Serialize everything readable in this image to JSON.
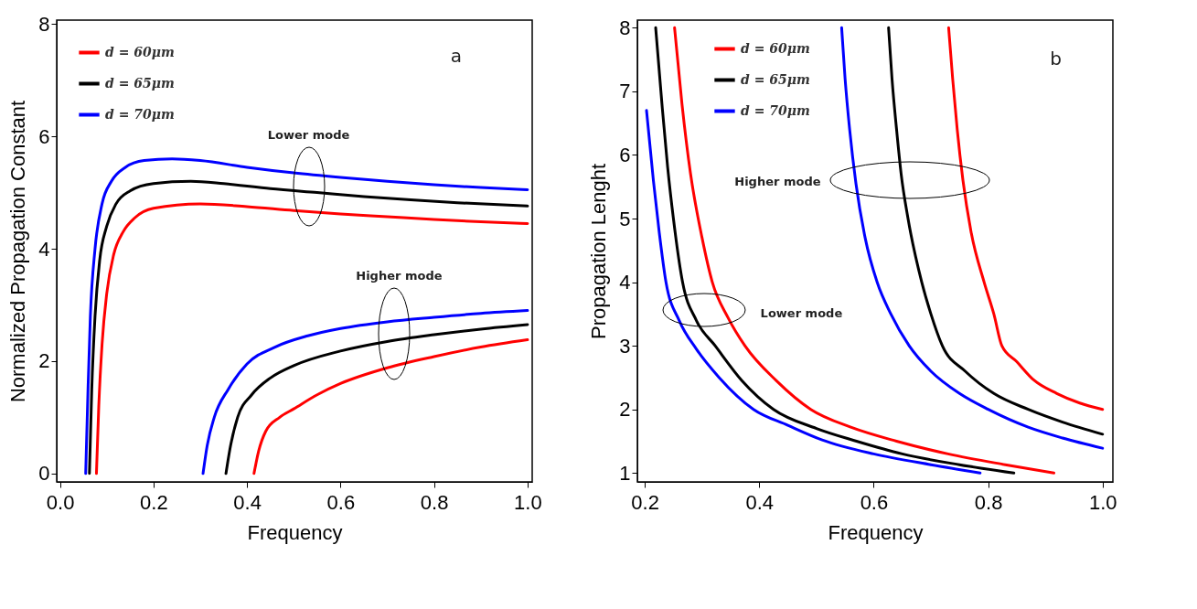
{
  "chart_data": [
    {
      "type": "line",
      "xlabel": "Frequency",
      "ylabel": "Normalized Propagation Constant",
      "legend": "top left",
      "grid": false,
      "xlim": [
        -0.007,
        1.01
      ],
      "ylim": [
        -0.15,
        8.07
      ],
      "xticks": [
        {
          "value": 0,
          "label": "0.0"
        },
        {
          "value": 0.2,
          "label": "0.2"
        },
        {
          "value": 0.4,
          "label": "0.4"
        },
        {
          "value": 0.6,
          "label": "0.6"
        },
        {
          "value": 0.8,
          "label": "0.8"
        },
        {
          "value": 1,
          "label": "1.0"
        }
      ],
      "yticks": [
        0,
        2,
        4,
        6,
        8
      ],
      "annotations": [
        "a",
        "Lower mode",
        "Higher mode"
      ],
      "series": [
        {
          "name": "d = 60μm",
          "color": "#ff0000",
          "x": [
            0.078,
            0.083,
            0.09,
            0.1,
            0.115,
            0.135,
            0.16,
            0.2,
            0.3,
            0.4,
            0.5,
            0.6,
            0.7,
            0.8,
            0.9,
            1.0
          ],
          "values": [
            0,
            1.2,
            2.3,
            3.2,
            3.9,
            4.3,
            4.55,
            4.72,
            4.8,
            4.75,
            4.68,
            4.62,
            4.57,
            4.52,
            4.48,
            4.45
          ]
        },
        {
          "name": "d = 65μm",
          "color": "#000000",
          "x": [
            0.063,
            0.068,
            0.075,
            0.085,
            0.1,
            0.12,
            0.15,
            0.2,
            0.28,
            0.35,
            0.45,
            0.55,
            0.65,
            0.75,
            0.85,
            1.0
          ],
          "values": [
            0,
            1.5,
            2.8,
            3.8,
            4.4,
            4.8,
            5.03,
            5.16,
            5.2,
            5.16,
            5.07,
            5.0,
            4.93,
            4.87,
            4.82,
            4.76
          ]
        },
        {
          "name": "d = 70μm",
          "color": "#0000ff",
          "x": [
            0.055,
            0.06,
            0.065,
            0.075,
            0.09,
            0.11,
            0.14,
            0.18,
            0.24,
            0.3,
            0.4,
            0.5,
            0.6,
            0.7,
            0.8,
            0.9,
            1.0
          ],
          "values": [
            0,
            1.5,
            2.8,
            4.0,
            4.8,
            5.2,
            5.45,
            5.57,
            5.6,
            5.57,
            5.45,
            5.35,
            5.27,
            5.2,
            5.14,
            5.09,
            5.05
          ]
        },
        {
          "color": "#ff0000",
          "x": [
            0.415,
            0.425,
            0.44,
            0.47,
            0.5,
            0.55,
            0.6,
            0.7,
            0.8,
            0.9,
            1.0
          ],
          "values": [
            0,
            0.4,
            0.75,
            1.0,
            1.15,
            1.4,
            1.6,
            1.88,
            2.08,
            2.25,
            2.38
          ]
        },
        {
          "color": "#000000",
          "x": [
            0.355,
            0.365,
            0.38,
            0.41,
            0.45,
            0.5,
            0.6,
            0.7,
            0.8,
            0.9,
            1.0
          ],
          "values": [
            0,
            0.5,
            1.0,
            1.4,
            1.7,
            1.92,
            2.18,
            2.35,
            2.47,
            2.57,
            2.65
          ]
        },
        {
          "color": "#0000ff",
          "x": [
            0.306,
            0.315,
            0.33,
            0.36,
            0.4,
            0.46,
            0.53,
            0.6,
            0.7,
            0.8,
            0.9,
            1.0
          ],
          "values": [
            0,
            0.5,
            1.0,
            1.5,
            1.95,
            2.25,
            2.45,
            2.58,
            2.7,
            2.78,
            2.85,
            2.9
          ]
        }
      ]
    },
    {
      "type": "line",
      "xlabel": "Frequency",
      "ylabel": "Propagation Lenght",
      "legend": "top left",
      "grid": false,
      "xlim": [
        0.187,
        1.018
      ],
      "ylim": [
        0.86,
        8.12
      ],
      "xticks": [
        {
          "value": 0.2,
          "label": "0.2"
        },
        {
          "value": 0.4,
          "label": "0.4"
        },
        {
          "value": 0.6,
          "label": "0.6"
        },
        {
          "value": 0.8,
          "label": "0.8"
        },
        {
          "value": 1,
          "label": "1.0"
        }
      ],
      "yticks": [
        1,
        2,
        3,
        4,
        5,
        6,
        7,
        8
      ],
      "annotations": [
        "b",
        "Higher mode",
        "Lower mode"
      ],
      "series": [
        {
          "name": "d = 60μm",
          "color": "#ff0000",
          "x": [
            0.252,
            0.265,
            0.28,
            0.3,
            0.318,
            0.345,
            0.375,
            0.43,
            0.49,
            0.56,
            0.64,
            0.73,
            0.83,
            0.915
          ],
          "values": [
            8.0,
            6.8,
            5.7,
            4.7,
            4.0,
            3.45,
            3.0,
            2.45,
            2.0,
            1.72,
            1.5,
            1.3,
            1.13,
            1.0
          ]
        },
        {
          "name": "d = 65μm",
          "color": "#000000",
          "x": [
            0.219,
            0.23,
            0.24,
            0.25,
            0.266,
            0.29,
            0.323,
            0.37,
            0.425,
            0.5,
            0.57,
            0.65,
            0.75,
            0.845
          ],
          "values": [
            8.0,
            6.8,
            5.8,
            5.0,
            4.0,
            3.4,
            3.0,
            2.45,
            2.0,
            1.7,
            1.5,
            1.3,
            1.13,
            1.0
          ]
        },
        {
          "name": "d = 70μm",
          "color": "#0000ff",
          "x": [
            0.203,
            0.215,
            0.225,
            0.237,
            0.26,
            0.29,
            0.33,
            0.39,
            0.45,
            0.51,
            0.6,
            0.7,
            0.786
          ],
          "values": [
            6.7,
            5.6,
            4.8,
            4.0,
            3.4,
            2.95,
            2.5,
            2.0,
            1.75,
            1.52,
            1.3,
            1.13,
            1.0
          ]
        },
        {
          "color": "#ff0000",
          "x": [
            0.731,
            0.738,
            0.746,
            0.756,
            0.77,
            0.793,
            0.81,
            0.824,
            0.85,
            0.88,
            0.92,
            0.96,
            1.0
          ],
          "values": [
            8.0,
            7.2,
            6.4,
            5.6,
            4.8,
            4.0,
            3.5,
            3.0,
            2.75,
            2.46,
            2.25,
            2.1,
            2.0
          ]
        },
        {
          "color": "#000000",
          "x": [
            0.626,
            0.632,
            0.64,
            0.648,
            0.66,
            0.684,
            0.7,
            0.72,
            0.76,
            0.81,
            0.87,
            0.93,
            1.0
          ],
          "values": [
            8.0,
            7.2,
            6.4,
            5.7,
            5.0,
            4.0,
            3.5,
            3.0,
            2.6,
            2.25,
            2.0,
            1.8,
            1.61
          ]
        },
        {
          "color": "#0000ff",
          "x": [
            0.544,
            0.55,
            0.558,
            0.569,
            0.585,
            0.606,
            0.63,
            0.662,
            0.7,
            0.75,
            0.8,
            0.87,
            0.93,
            1.0
          ],
          "values": [
            8.0,
            7.2,
            6.4,
            5.55,
            4.7,
            4.0,
            3.5,
            3.0,
            2.6,
            2.25,
            2.0,
            1.72,
            1.55,
            1.39
          ]
        }
      ]
    }
  ]
}
